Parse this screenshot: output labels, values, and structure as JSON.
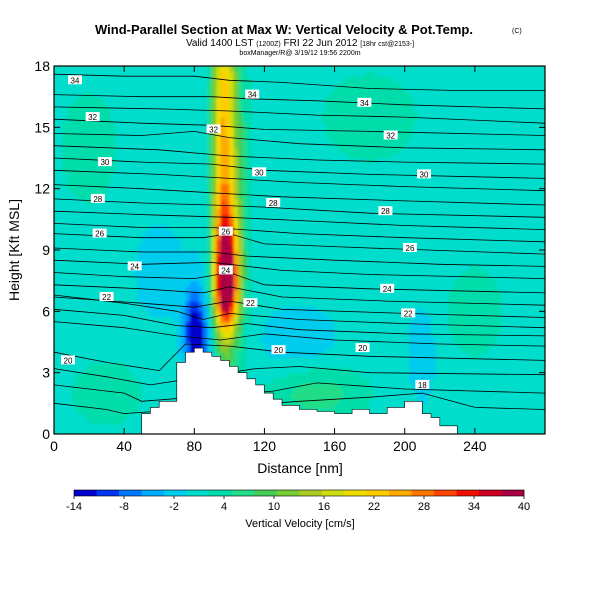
{
  "chart_data": {
    "type": "heatmap",
    "title": "Wind-Parallel Section at Max W: Vertical Velocity & Pot.Temp.",
    "title_mark": "(C)",
    "subtitle_main": "Valid 1400 LST",
    "subtitle_time": "(1200Z)",
    "subtitle_date": "FRI 22 Jun 2012",
    "subtitle_run": "[18hr cst@2153-]",
    "credit": "boxManager/R@ 3/19/12 19:56 2200m",
    "xlabel": "Distance [nm]",
    "ylabel": "Height [Kft MSL]",
    "xlim": [
      0,
      280
    ],
    "ylim": [
      0,
      18
    ],
    "x_ticks": [
      0,
      40,
      80,
      120,
      160,
      200,
      240
    ],
    "y_ticks": [
      0,
      3,
      6,
      9,
      12,
      15,
      18
    ],
    "colorbar": {
      "label": "Vertical Velocity [cm/s]",
      "ticks": [
        -14,
        -8,
        -2,
        4,
        10,
        16,
        22,
        28,
        34,
        40
      ],
      "colors": [
        "#0000cc",
        "#0033ee",
        "#0077ff",
        "#00aaff",
        "#00ccee",
        "#00ddcc",
        "#00ddaa",
        "#22dd88",
        "#44cc55",
        "#77cc33",
        "#aacc22",
        "#ccdd11",
        "#eedd00",
        "#ffcc00",
        "#ffaa00",
        "#ff7700",
        "#ff4400",
        "#ee1100",
        "#cc0022",
        "#aa0044"
      ]
    },
    "vertical_velocity_field": {
      "background": 0.5,
      "cells": [
        {
          "x": 97,
          "y": 14.5,
          "sx": 5,
          "sy": 6,
          "w": 24
        },
        {
          "x": 98,
          "y": 8.0,
          "sx": 5,
          "sy": 2.2,
          "w": 28
        },
        {
          "x": 99,
          "y": 7.0,
          "sx": 4,
          "sy": 1.2,
          "w": 12
        },
        {
          "x": 80,
          "y": 5.0,
          "sx": 4,
          "sy": 1.5,
          "w": -14
        },
        {
          "x": 86,
          "y": 4.5,
          "sx": 5,
          "sy": 1.2,
          "w": -4
        },
        {
          "x": 107,
          "y": 11.0,
          "sx": 4,
          "sy": 6,
          "w": 4
        },
        {
          "x": 88,
          "y": 11.0,
          "sx": 4,
          "sy": 6,
          "w": -2
        },
        {
          "x": 20,
          "y": 14.0,
          "sx": 15,
          "sy": 2.5,
          "w": 3
        },
        {
          "x": 180,
          "y": 15.5,
          "sx": 25,
          "sy": 2.0,
          "w": 3
        },
        {
          "x": 210,
          "y": 4.0,
          "sx": 5,
          "sy": 1.5,
          "w": -4
        },
        {
          "x": 140,
          "y": 4.5,
          "sx": 15,
          "sy": 1.2,
          "w": -3
        },
        {
          "x": 150,
          "y": 2.0,
          "sx": 20,
          "sy": 1.0,
          "w": 6
        },
        {
          "x": 30,
          "y": 2.0,
          "sx": 15,
          "sy": 1.2,
          "w": 4
        },
        {
          "x": 240,
          "y": 6.0,
          "sx": 15,
          "sy": 2.0,
          "w": 3
        },
        {
          "x": 60,
          "y": 8.0,
          "sx": 12,
          "sy": 2.0,
          "w": -2
        }
      ]
    },
    "terrain": {
      "x": [
        0,
        40,
        50,
        55,
        60,
        70,
        75,
        80,
        85,
        90,
        95,
        100,
        105,
        110,
        115,
        120,
        125,
        130,
        140,
        150,
        160,
        170,
        180,
        190,
        200,
        210,
        215,
        220,
        230,
        280
      ],
      "height": [
        0,
        0,
        1.0,
        1.3,
        1.6,
        3.5,
        4.0,
        4.2,
        4.0,
        3.8,
        3.6,
        3.3,
        3.0,
        2.7,
        2.4,
        2.0,
        1.7,
        1.4,
        1.2,
        1.1,
        1.0,
        1.2,
        1.0,
        1.3,
        1.6,
        1.0,
        0.8,
        0.4,
        0,
        0
      ]
    },
    "isentropes": [
      {
        "label": "34",
        "label_at": [
          12,
          17.3
        ],
        "points": [
          [
            0,
            17.6
          ],
          [
            40,
            17.5
          ],
          [
            80,
            17.5
          ],
          [
            100,
            17.3
          ],
          [
            130,
            17.2
          ],
          [
            180,
            16.9
          ],
          [
            230,
            16.8
          ],
          [
            280,
            16.8
          ]
        ]
      },
      {
        "label": "34",
        "label_at": [
          113,
          16.6
        ],
        "points": [
          [
            0,
            16.6
          ],
          [
            50,
            16.5
          ],
          [
            90,
            16.5
          ],
          [
            110,
            16.4
          ],
          [
            150,
            16.3
          ],
          [
            200,
            16.1
          ],
          [
            280,
            15.9
          ]
        ]
      },
      {
        "label": "34",
        "label_at": [
          177,
          16.2
        ],
        "points": [
          [
            0,
            16.0
          ],
          [
            60,
            15.9
          ],
          [
            100,
            15.8
          ],
          [
            150,
            15.6
          ],
          [
            200,
            15.5
          ],
          [
            280,
            15.2
          ]
        ]
      },
      {
        "label": "32",
        "label_at": [
          22,
          15.5
        ],
        "points": [
          [
            0,
            15.4
          ],
          [
            50,
            15.2
          ],
          [
            90,
            15.1
          ],
          [
            120,
            14.9
          ],
          [
            180,
            14.8
          ],
          [
            280,
            14.6
          ]
        ]
      },
      {
        "label": "32",
        "label_at": [
          91,
          14.9
        ],
        "points": [
          [
            0,
            14.7
          ],
          [
            50,
            14.6
          ],
          [
            80,
            14.8
          ],
          [
            100,
            14.5
          ],
          [
            140,
            14.2
          ],
          [
            200,
            14.0
          ],
          [
            280,
            13.9
          ]
        ]
      },
      {
        "label": "32",
        "label_at": [
          192,
          14.6
        ],
        "points": [
          [
            0,
            14.1
          ],
          [
            60,
            13.9
          ],
          [
            100,
            13.6
          ],
          [
            150,
            13.4
          ],
          [
            200,
            13.3
          ],
          [
            280,
            13.2
          ]
        ]
      },
      {
        "label": "30",
        "label_at": [
          29,
          13.3
        ],
        "points": [
          [
            0,
            13.5
          ],
          [
            50,
            13.3
          ],
          [
            90,
            13.2
          ],
          [
            120,
            12.9
          ],
          [
            180,
            12.7
          ],
          [
            280,
            12.5
          ]
        ]
      },
      {
        "label": "30",
        "label_at": [
          117,
          12.8
        ],
        "points": [
          [
            0,
            12.9
          ],
          [
            60,
            12.7
          ],
          [
            100,
            12.5
          ],
          [
            140,
            12.3
          ],
          [
            200,
            12.1
          ],
          [
            280,
            11.9
          ]
        ]
      },
      {
        "label": "30",
        "label_at": [
          211,
          12.7
        ],
        "points": [
          [
            0,
            12.2
          ],
          [
            50,
            12.0
          ],
          [
            90,
            11.8
          ],
          [
            130,
            11.6
          ],
          [
            200,
            11.4
          ],
          [
            280,
            11.2
          ]
        ]
      },
      {
        "label": "28",
        "label_at": [
          25,
          11.5
        ],
        "points": [
          [
            0,
            11.5
          ],
          [
            50,
            11.3
          ],
          [
            90,
            11.2
          ],
          [
            120,
            11.1
          ],
          [
            180,
            10.8
          ],
          [
            280,
            10.6
          ]
        ]
      },
      {
        "label": "28",
        "label_at": [
          125,
          11.3
        ],
        "points": [
          [
            0,
            10.9
          ],
          [
            60,
            10.7
          ],
          [
            100,
            10.6
          ],
          [
            150,
            10.4
          ],
          [
            200,
            10.2
          ],
          [
            280,
            10.0
          ]
        ]
      },
      {
        "label": "28",
        "label_at": [
          189,
          10.9
        ],
        "points": [
          [
            0,
            10.3
          ],
          [
            50,
            10.1
          ],
          [
            90,
            10.1
          ],
          [
            140,
            9.8
          ],
          [
            200,
            9.6
          ],
          [
            280,
            9.4
          ]
        ]
      },
      {
        "label": "26",
        "label_at": [
          26,
          9.8
        ],
        "points": [
          [
            0,
            9.8
          ],
          [
            50,
            9.6
          ],
          [
            85,
            9.6
          ],
          [
            100,
            9.8
          ],
          [
            120,
            9.3
          ],
          [
            180,
            9.1
          ],
          [
            280,
            8.8
          ]
        ]
      },
      {
        "label": "26",
        "label_at": [
          98,
          9.9
        ],
        "points": [
          [
            0,
            9.1
          ],
          [
            50,
            8.9
          ],
          [
            90,
            8.9
          ],
          [
            110,
            8.7
          ],
          [
            160,
            8.5
          ],
          [
            220,
            8.3
          ],
          [
            280,
            8.2
          ]
        ]
      },
      {
        "label": "26",
        "label_at": [
          203,
          9.1
        ],
        "points": [
          [
            0,
            8.5
          ],
          [
            50,
            8.3
          ],
          [
            90,
            8.4
          ],
          [
            130,
            8.0
          ],
          [
            180,
            7.8
          ],
          [
            280,
            7.6
          ]
        ]
      },
      {
        "label": "24",
        "label_at": [
          46,
          8.2
        ],
        "points": [
          [
            0,
            7.9
          ],
          [
            40,
            7.7
          ],
          [
            80,
            7.6
          ],
          [
            100,
            7.9
          ],
          [
            120,
            7.3
          ],
          [
            180,
            7.1
          ],
          [
            280,
            6.9
          ]
        ]
      },
      {
        "label": "24",
        "label_at": [
          98,
          8.0
        ],
        "points": [
          [
            0,
            7.3
          ],
          [
            50,
            7.1
          ],
          [
            85,
            6.9
          ],
          [
            100,
            7.2
          ],
          [
            130,
            6.7
          ],
          [
            190,
            6.5
          ],
          [
            280,
            6.3
          ]
        ]
      },
      {
        "label": "24",
        "label_at": [
          190,
          7.1
        ],
        "points": [
          [
            0,
            6.7
          ],
          [
            50,
            6.4
          ],
          [
            80,
            6.2
          ],
          [
            100,
            6.5
          ],
          [
            130,
            6.1
          ],
          [
            200,
            5.9
          ],
          [
            280,
            5.7
          ]
        ]
      },
      {
        "label": "22",
        "label_at": [
          30,
          6.7
        ],
        "points": [
          [
            0,
            6.8
          ],
          [
            40,
            6.4
          ],
          [
            70,
            6.0
          ],
          [
            85,
            5.6
          ],
          [
            100,
            5.9
          ],
          [
            140,
            5.6
          ],
          [
            200,
            5.4
          ],
          [
            280,
            5.2
          ]
        ]
      },
      {
        "label": "22",
        "label_at": [
          112,
          6.4
        ],
        "points": [
          [
            0,
            6.1
          ],
          [
            40,
            5.8
          ],
          [
            70,
            5.3
          ],
          [
            90,
            5.2
          ],
          [
            110,
            5.4
          ],
          [
            140,
            5.1
          ],
          [
            200,
            4.9
          ],
          [
            280,
            4.8
          ]
        ]
      },
      {
        "label": "22",
        "label_at": [
          202,
          5.9
        ],
        "points": [
          [
            0,
            5.5
          ],
          [
            40,
            5.2
          ],
          [
            70,
            4.8
          ],
          [
            95,
            4.6
          ],
          [
            120,
            4.9
          ],
          [
            160,
            4.6
          ],
          [
            220,
            4.4
          ],
          [
            280,
            4.3
          ]
        ]
      },
      {
        "label": "20",
        "label_at": [
          8,
          3.6
        ],
        "points": [
          [
            0,
            4.0
          ],
          [
            30,
            3.5
          ],
          [
            60,
            3.1
          ],
          [
            75,
            4.4
          ],
          [
            100,
            4.3
          ],
          [
            130,
            4.0
          ],
          [
            180,
            3.8
          ],
          [
            280,
            3.6
          ]
        ]
      },
      {
        "label": "20",
        "label_at": [
          128,
          4.1
        ],
        "points": [
          [
            0,
            3.2
          ],
          [
            30,
            2.8
          ],
          [
            55,
            2.4
          ],
          [
            115,
            3.2
          ],
          [
            140,
            3.3
          ],
          [
            180,
            3.0
          ],
          [
            280,
            2.9
          ]
        ]
      },
      {
        "label": "20",
        "label_at": [
          176,
          4.2
        ],
        "points": [
          [
            0,
            2.4
          ],
          [
            40,
            2.0
          ],
          [
            50,
            1.6
          ],
          [
            125,
            2.1
          ],
          [
            150,
            2.5
          ],
          [
            200,
            2.2
          ],
          [
            280,
            2.0
          ]
        ]
      },
      {
        "label": "18",
        "label_at": [
          210,
          2.4
        ],
        "points": [
          [
            0,
            1.5
          ],
          [
            30,
            1.2
          ],
          [
            40,
            1.0
          ],
          [
            140,
            1.6
          ],
          [
            180,
            1.8
          ],
          [
            210,
            2.0
          ],
          [
            240,
            1.3
          ],
          [
            280,
            1.2
          ]
        ]
      }
    ]
  }
}
